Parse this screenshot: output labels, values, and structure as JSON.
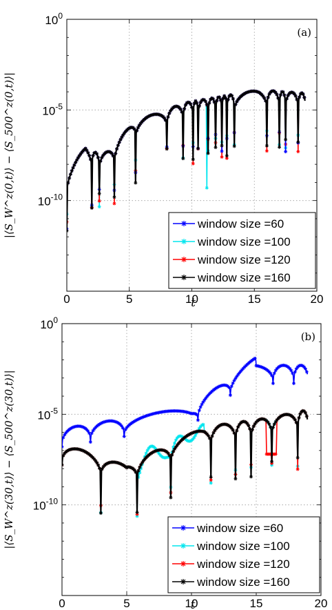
{
  "chart_data": [
    {
      "type": "line",
      "panel_label": "(a)",
      "xlabel": "t",
      "ylabel": "|⟨S_W^z(0,t)⟩ − ⟨S_500^z(0,t)⟩|",
      "y_scale": "log",
      "xlim": [
        0,
        20
      ],
      "ylim": [
        1e-15,
        1
      ],
      "x_ticks": [
        "0",
        "5",
        "10",
        "15",
        "20"
      ],
      "y_ticks": [
        "10^0",
        "10^-5",
        "10^-10"
      ],
      "grid": true,
      "legend_position": "lower-right",
      "series": [
        {
          "name": "window size =60",
          "color": "#0000ff"
        },
        {
          "name": "window size =100",
          "color": "#00e5ee"
        },
        {
          "name": "window size =120",
          "color": "#ff0000"
        },
        {
          "name": "window size =160",
          "color": "#000000"
        }
      ]
    },
    {
      "type": "line",
      "panel_label": "(b)",
      "xlabel": "t",
      "ylabel": "|⟨S_W^z(30,t)⟩ − ⟨S_500^z(30,t)⟩|",
      "y_scale": "log",
      "xlim": [
        0,
        20
      ],
      "ylim": [
        1e-15,
        1
      ],
      "x_ticks": [
        "0",
        "5",
        "10",
        "15",
        "20"
      ],
      "y_ticks": [
        "10^0",
        "10^-5",
        "10^-10"
      ],
      "grid": true,
      "legend_position": "lower-right",
      "series": [
        {
          "name": "window size =60",
          "color": "#0000ff"
        },
        {
          "name": "window size =100",
          "color": "#00e5ee"
        },
        {
          "name": "window size =120",
          "color": "#ff0000"
        },
        {
          "name": "window size =160",
          "color": "#000000"
        }
      ]
    }
  ]
}
